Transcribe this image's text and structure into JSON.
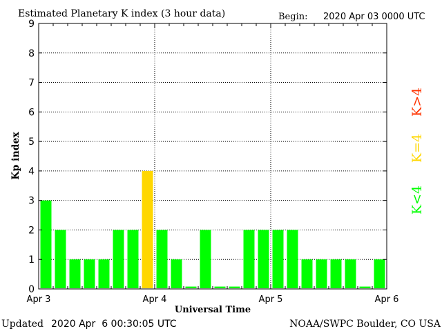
{
  "chart_data": {
    "type": "bar",
    "title": "Estimated Planetary K index (3 hour data)",
    "begin_label": "Begin:",
    "begin_value": "2020 Apr 03 0000 UTC",
    "ylabel": "Kp index",
    "xlabel": "Universal Time",
    "ylim": [
      0,
      9
    ],
    "yticks": [
      "0",
      "1",
      "2",
      "3",
      "4",
      "5",
      "6",
      "7",
      "8",
      "9"
    ],
    "xticks": [
      "Apr 3",
      "Apr 4",
      "Apr 5",
      "Apr 6"
    ],
    "grid": true,
    "values": [
      3,
      2,
      1,
      1,
      1,
      2,
      2,
      4,
      2,
      1,
      0,
      2,
      0,
      0,
      2,
      2,
      2,
      2,
      1,
      1,
      1,
      1,
      0,
      1
    ],
    "legend": [
      {
        "label": "K<4",
        "color": "#00ff00"
      },
      {
        "label": "K=4",
        "color": "#ffd700"
      },
      {
        "label": "K>4",
        "color": "#ff3300"
      }
    ],
    "colors": {
      "low": "#00ff00",
      "mid": "#ffd700",
      "high": "#ff3300"
    }
  },
  "footer": {
    "updated_label": "Updated",
    "updated_value": "2020 Apr  6 00:30:05 UTC",
    "source": "NOAA/SWPC Boulder, CO USA"
  }
}
